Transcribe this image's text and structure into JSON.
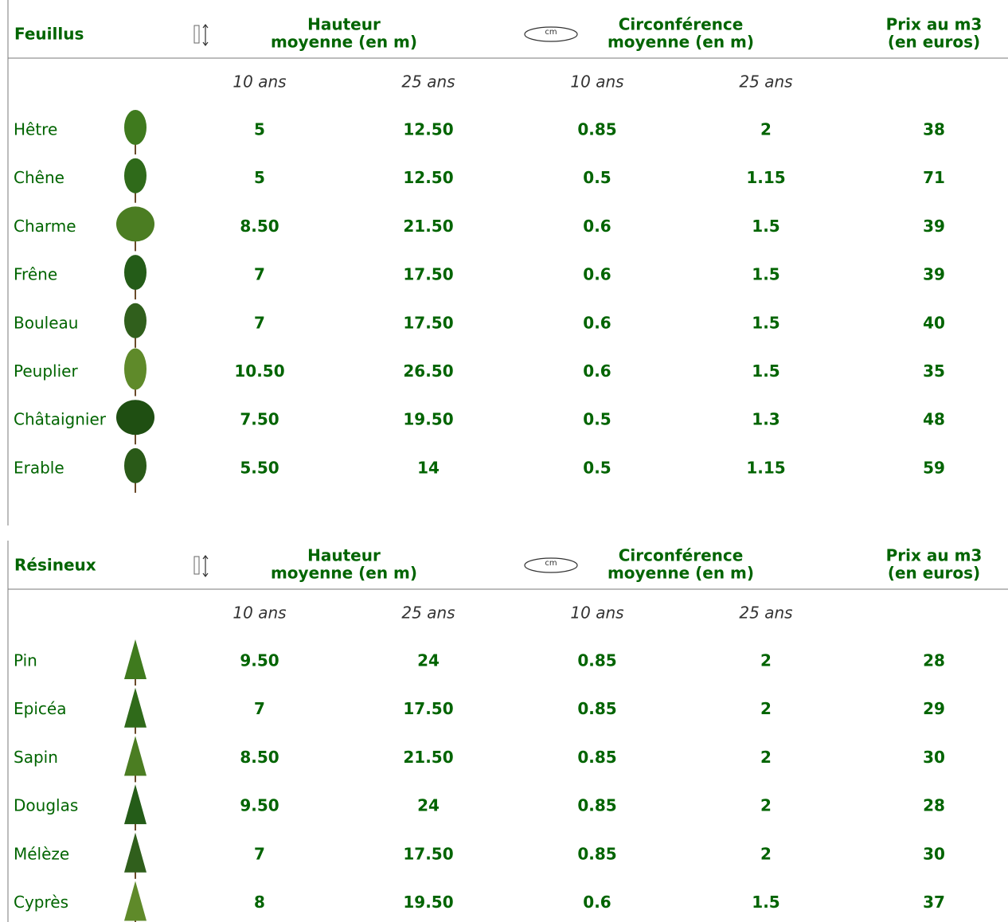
{
  "sections": [
    {
      "title": "Feuillus",
      "height_header": [
        "Hauteur",
        "moyenne (en m)"
      ],
      "circ_header": [
        "Circonférence",
        "moyenne (en m)"
      ],
      "price_header": [
        "Prix au m3",
        "(en euros)"
      ],
      "icon_label": "cm",
      "subheaders": [
        "10 ans",
        "25 ans",
        "10 ans",
        "25 ans"
      ],
      "rows": [
        [
          "Hêtre",
          "5",
          "12.50",
          "0.85",
          "2",
          "38"
        ],
        [
          "Chêne",
          "5",
          "12.50",
          "0.5",
          "1.15",
          "71"
        ],
        [
          "Charme",
          "8.50",
          "21.50",
          "0.6",
          "1.5",
          "39"
        ],
        [
          "Frêne",
          "7",
          "17.50",
          "0.6",
          "1.5",
          "39"
        ],
        [
          "Bouleau",
          "7",
          "17.50",
          "0.6",
          "1.5",
          "40"
        ],
        [
          "Peuplier",
          "10.50",
          "26.50",
          "0.6",
          "1.5",
          "35"
        ],
        [
          "Châtaignier",
          "7.50",
          "19.50",
          "0.5",
          "1.3",
          "48"
        ],
        [
          "Erable",
          "5.50",
          "14",
          "0.5",
          "1.15",
          "59"
        ]
      ]
    },
    {
      "title": "Résineux",
      "height_header": [
        "Hauteur",
        "moyenne (en m)"
      ],
      "circ_header": [
        "Circonférence",
        "moyenne (en m)"
      ],
      "price_header": [
        "Prix au m3",
        "(en euros)"
      ],
      "icon_label": "cm",
      "subheaders": [
        "10 ans",
        "25 ans",
        "10 ans",
        "25 ans"
      ],
      "rows": [
        [
          "Pin",
          "9.50",
          "24",
          "0.85",
          "2",
          "28"
        ],
        [
          "Epicéa",
          "7",
          "17.50",
          "0.85",
          "2",
          "29"
        ],
        [
          "Sapin",
          "8.50",
          "21.50",
          "0.85",
          "2",
          "30"
        ],
        [
          "Douglas",
          "9.50",
          "24",
          "0.85",
          "2",
          "28"
        ],
        [
          "Mélèze",
          "7",
          "17.50",
          "0.85",
          "2",
          "30"
        ],
        [
          "Cyprès",
          "8",
          "19.50",
          "0.6",
          "1.5",
          "37"
        ]
      ]
    }
  ]
}
